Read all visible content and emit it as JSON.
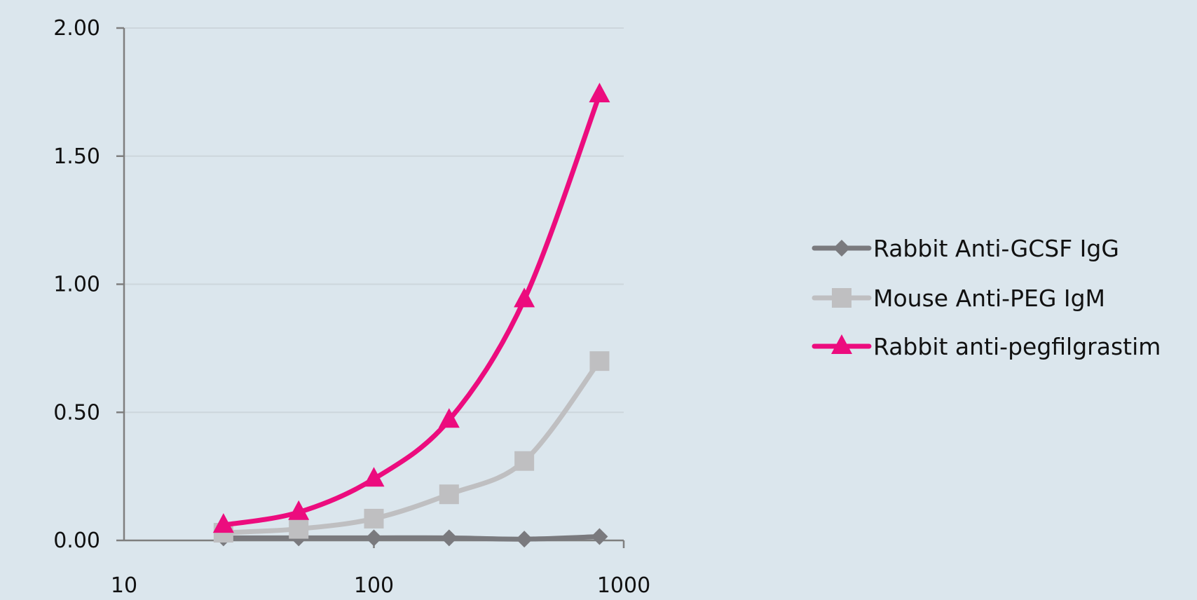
{
  "chart_data": {
    "type": "line",
    "xscale": "log",
    "xlim": [
      10,
      1000
    ],
    "ylim": [
      0,
      2
    ],
    "x_ticks": [
      "10",
      "100",
      "1000"
    ],
    "y_ticks": [
      "0.00",
      "0.50",
      "1.00",
      "1.50",
      "2.00"
    ],
    "grid": "horizontal",
    "legend_position": "right",
    "x": [
      25,
      50,
      100,
      200,
      400,
      800
    ],
    "series": [
      {
        "name": "Rabbit Anti-GCSF IgG",
        "marker": "diamond",
        "color": "#7a7a7e",
        "values": [
          0.01,
          0.01,
          0.01,
          0.01,
          0.005,
          0.015
        ]
      },
      {
        "name": "Mouse Anti-PEG IgM",
        "marker": "square",
        "color": "#bfbfc1",
        "values": [
          0.03,
          0.045,
          0.085,
          0.18,
          0.31,
          0.7
        ]
      },
      {
        "name": "Rabbit anti-pegfilgrastim",
        "marker": "triangle",
        "color": "#ec0c7e",
        "values": [
          0.06,
          0.11,
          0.24,
          0.47,
          0.94,
          1.74
        ]
      }
    ]
  }
}
